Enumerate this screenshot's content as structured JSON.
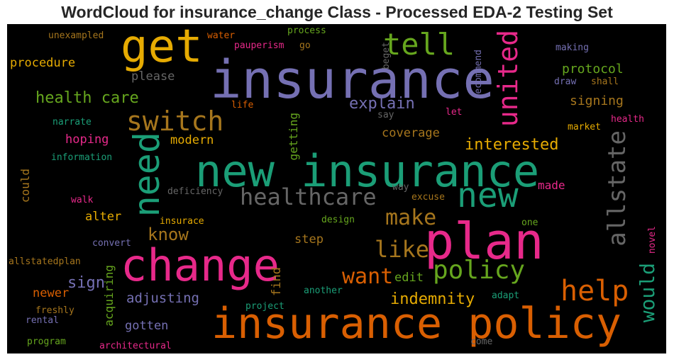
{
  "chart_data": {
    "type": "wordcloud",
    "title": "WordCloud for insurance_change Class - Processed EDA-2 Testing Set",
    "background": "#000000",
    "palette": [
      "#1b9e77",
      "#d95f02",
      "#7570b3",
      "#e7298a",
      "#66a61e",
      "#e6ab02",
      "#a6761d",
      "#666666"
    ],
    "words": [
      {
        "text": "insurance",
        "color": "#7570b3",
        "orientation": "horizontal"
      },
      {
        "text": "new insurance",
        "color": "#1b9e77",
        "orientation": "horizontal"
      },
      {
        "text": "insurance policy",
        "color": "#d95f02",
        "orientation": "horizontal"
      },
      {
        "text": "plan",
        "color": "#e7298a",
        "orientation": "horizontal"
      },
      {
        "text": "change",
        "color": "#e7298a",
        "orientation": "horizontal"
      },
      {
        "text": "get",
        "color": "#e6ab02",
        "orientation": "horizontal"
      },
      {
        "text": "need",
        "color": "#1b9e77",
        "orientation": "vertical"
      },
      {
        "text": "new",
        "color": "#1b9e77",
        "orientation": "horizontal"
      },
      {
        "text": "switch",
        "color": "#a6761d",
        "orientation": "horizontal"
      },
      {
        "text": "tell",
        "color": "#66a61e",
        "orientation": "horizontal"
      },
      {
        "text": "united",
        "color": "#e7298a",
        "orientation": "vertical"
      },
      {
        "text": "help",
        "color": "#d95f02",
        "orientation": "horizontal"
      },
      {
        "text": "policy",
        "color": "#66a61e",
        "orientation": "horizontal"
      },
      {
        "text": "healthcare",
        "color": "#666666",
        "orientation": "horizontal"
      },
      {
        "text": "allstate",
        "color": "#666666",
        "orientation": "vertical"
      },
      {
        "text": "would",
        "color": "#1b9e77",
        "orientation": "vertical"
      },
      {
        "text": "like",
        "color": "#a6761d",
        "orientation": "horizontal"
      },
      {
        "text": "make",
        "color": "#a6761d",
        "orientation": "horizontal"
      },
      {
        "text": "want",
        "color": "#d95f02",
        "orientation": "horizontal"
      },
      {
        "text": "know",
        "color": "#a6761d",
        "orientation": "horizontal"
      },
      {
        "text": "health care",
        "color": "#66a61e",
        "orientation": "horizontal"
      },
      {
        "text": "explain",
        "color": "#7570b3",
        "orientation": "horizontal"
      },
      {
        "text": "interested",
        "color": "#e6ab02",
        "orientation": "horizontal"
      },
      {
        "text": "indemnity",
        "color": "#e6ab02",
        "orientation": "horizontal"
      },
      {
        "text": "sign",
        "color": "#7570b3",
        "orientation": "horizontal"
      },
      {
        "text": "adjusting",
        "color": "#7570b3",
        "orientation": "horizontal"
      },
      {
        "text": "protocol",
        "color": "#66a61e",
        "orientation": "horizontal"
      },
      {
        "text": "signing",
        "color": "#a6761d",
        "orientation": "horizontal"
      },
      {
        "text": "coverage",
        "color": "#a6761d",
        "orientation": "horizontal"
      },
      {
        "text": "procedure",
        "color": "#e6ab02",
        "orientation": "horizontal"
      },
      {
        "text": "please",
        "color": "#666666",
        "orientation": "horizontal"
      },
      {
        "text": "hoping",
        "color": "#e7298a",
        "orientation": "horizontal"
      },
      {
        "text": "modern",
        "color": "#e6ab02",
        "orientation": "horizontal"
      },
      {
        "text": "acquiring",
        "color": "#66a61e",
        "orientation": "vertical"
      },
      {
        "text": "getting",
        "color": "#66a61e",
        "orientation": "vertical"
      },
      {
        "text": "alter",
        "color": "#e6ab02",
        "orientation": "horizontal"
      },
      {
        "text": "step",
        "color": "#a6761d",
        "orientation": "horizontal"
      },
      {
        "text": "edit",
        "color": "#66a61e",
        "orientation": "horizontal"
      },
      {
        "text": "made",
        "color": "#e7298a",
        "orientation": "horizontal"
      },
      {
        "text": "gotten",
        "color": "#7570b3",
        "orientation": "horizontal"
      },
      {
        "text": "newer",
        "color": "#d95f02",
        "orientation": "horizontal"
      },
      {
        "text": "find",
        "color": "#a6761d",
        "orientation": "vertical"
      },
      {
        "text": "could",
        "color": "#a6761d",
        "orientation": "vertical"
      },
      {
        "text": "unexampled",
        "color": "#a6761d",
        "orientation": "horizontal"
      },
      {
        "text": "water",
        "color": "#d95f02",
        "orientation": "horizontal"
      },
      {
        "text": "process",
        "color": "#66a61e",
        "orientation": "horizontal"
      },
      {
        "text": "pauperism",
        "color": "#e7298a",
        "orientation": "horizontal"
      },
      {
        "text": "go",
        "color": "#a6761d",
        "orientation": "horizontal"
      },
      {
        "text": "beget",
        "color": "#666666",
        "orientation": "vertical"
      },
      {
        "text": "recommend",
        "color": "#7570b3",
        "orientation": "vertical"
      },
      {
        "text": "making",
        "color": "#7570b3",
        "orientation": "horizontal"
      },
      {
        "text": "draw",
        "color": "#7570b3",
        "orientation": "horizontal"
      },
      {
        "text": "shall",
        "color": "#a6761d",
        "orientation": "horizontal"
      },
      {
        "text": "life",
        "color": "#d95f02",
        "orientation": "horizontal"
      },
      {
        "text": "say",
        "color": "#666666",
        "orientation": "horizontal"
      },
      {
        "text": "let",
        "color": "#e7298a",
        "orientation": "horizontal"
      },
      {
        "text": "health",
        "color": "#e7298a",
        "orientation": "horizontal"
      },
      {
        "text": "market",
        "color": "#e6ab02",
        "orientation": "horizontal"
      },
      {
        "text": "narrate",
        "color": "#1b9e77",
        "orientation": "horizontal"
      },
      {
        "text": "information",
        "color": "#1b9e77",
        "orientation": "horizontal"
      },
      {
        "text": "deficiency",
        "color": "#666666",
        "orientation": "horizontal"
      },
      {
        "text": "way",
        "color": "#666666",
        "orientation": "horizontal"
      },
      {
        "text": "excuse",
        "color": "#a6761d",
        "orientation": "horizontal"
      },
      {
        "text": "walk",
        "color": "#e7298a",
        "orientation": "horizontal"
      },
      {
        "text": "insurace",
        "color": "#e6ab02",
        "orientation": "horizontal"
      },
      {
        "text": "design",
        "color": "#66a61e",
        "orientation": "horizontal"
      },
      {
        "text": "one",
        "color": "#66a61e",
        "orientation": "horizontal"
      },
      {
        "text": "convert",
        "color": "#7570b3",
        "orientation": "horizontal"
      },
      {
        "text": "novel",
        "color": "#e7298a",
        "orientation": "vertical"
      },
      {
        "text": "allstatedplan",
        "color": "#a6761d",
        "orientation": "horizontal"
      },
      {
        "text": "another",
        "color": "#1b9e77",
        "orientation": "horizontal"
      },
      {
        "text": "adapt",
        "color": "#1b9e77",
        "orientation": "horizontal"
      },
      {
        "text": "project",
        "color": "#1b9e77",
        "orientation": "horizontal"
      },
      {
        "text": "freshly",
        "color": "#a6761d",
        "orientation": "horizontal"
      },
      {
        "text": "rental",
        "color": "#7570b3",
        "orientation": "horizontal"
      },
      {
        "text": "program",
        "color": "#66a61e",
        "orientation": "horizontal"
      },
      {
        "text": "architectural",
        "color": "#e7298a",
        "orientation": "horizontal"
      },
      {
        "text": "come",
        "color": "#666666",
        "orientation": "horizontal"
      }
    ]
  }
}
